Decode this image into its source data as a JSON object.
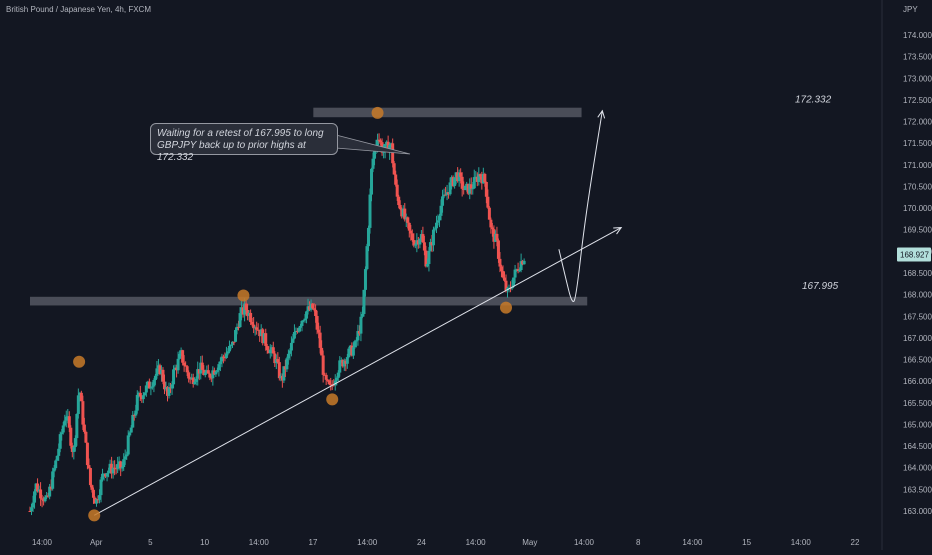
{
  "header": {
    "symbol_title": "British Pound / Japanese Yen, 4h, FXCM"
  },
  "annotation": {
    "text_line1": "Waiting for a retest of 167.995 to long",
    "text_line2": "GBPJPY back up to prior highs at 172.332"
  },
  "colors": {
    "background": "#131722",
    "up": "#26a69a",
    "down": "#ef5350",
    "zone": "#5d606b",
    "marker": "#c87a28",
    "text": "#b2b5be"
  },
  "chart_data": {
    "type": "candlestick",
    "title": "British Pound / Japanese Yen, 4h, FXCM",
    "currency_label": "JPY",
    "y_ticks": [
      "163.000",
      "163.500",
      "164.000",
      "164.500",
      "165.000",
      "165.500",
      "166.000",
      "166.500",
      "167.000",
      "167.500",
      "168.000",
      "168.500",
      "169.000",
      "169.500",
      "170.000",
      "170.500",
      "171.000",
      "171.500",
      "172.000",
      "172.500",
      "173.000",
      "173.500",
      "174.000"
    ],
    "ylim": [
      162.8,
      174.6
    ],
    "last_price": "168.927",
    "x_ticks": [
      "14:00",
      "Apr",
      "5",
      "10",
      "14:00",
      "17",
      "14:00",
      "24",
      "14:00",
      "May",
      "14:00",
      "8",
      "14:00",
      "15",
      "14:00",
      "22"
    ],
    "xlim": [
      0,
      45
    ],
    "support_level": {
      "label": "167.995",
      "from": 0,
      "to": 29.5,
      "high": 167.95,
      "low": 167.75
    },
    "resistance_level": {
      "label": "172.332",
      "from": 15,
      "to": 29.2,
      "high": 172.32,
      "low": 172.1
    },
    "trendline": {
      "start": [
        3.4,
        162.9
      ],
      "end": [
        31.3,
        169.55
      ]
    },
    "projection_path": [
      [
        28.0,
        169.05
      ],
      [
        28.4,
        168.3
      ],
      [
        28.7,
        167.8
      ],
      [
        28.9,
        167.9
      ],
      [
        29.4,
        169.8
      ],
      [
        30.3,
        172.25
      ]
    ],
    "swing_markers": [
      [
        2.6,
        166.45
      ],
      [
        3.4,
        162.9
      ],
      [
        11.3,
        167.98
      ],
      [
        16.0,
        165.58
      ],
      [
        18.4,
        172.2
      ],
      [
        25.2,
        167.7
      ]
    ],
    "price_path": [
      [
        0,
        163.0
      ],
      [
        0.3,
        163.6
      ],
      [
        0.9,
        163.2
      ],
      [
        1.4,
        164.2
      ],
      [
        1.9,
        165.3
      ],
      [
        2.3,
        164.3
      ],
      [
        2.6,
        165.9
      ],
      [
        2.9,
        164.7
      ],
      [
        3.2,
        163.6
      ],
      [
        3.5,
        163.2
      ],
      [
        3.9,
        163.9
      ],
      [
        4.4,
        164.0
      ],
      [
        4.9,
        164.0
      ],
      [
        5.3,
        164.8
      ],
      [
        5.7,
        165.6
      ],
      [
        6.3,
        165.9
      ],
      [
        6.9,
        166.3
      ],
      [
        7.3,
        165.6
      ],
      [
        7.6,
        166.2
      ],
      [
        8.0,
        166.6
      ],
      [
        8.5,
        166.0
      ],
      [
        9.0,
        166.3
      ],
      [
        9.4,
        166.1
      ],
      [
        9.8,
        166.3
      ],
      [
        10.3,
        166.6
      ],
      [
        10.7,
        166.8
      ],
      [
        11.1,
        167.5
      ],
      [
        11.4,
        167.7
      ],
      [
        11.8,
        167.4
      ],
      [
        12.1,
        167.2
      ],
      [
        12.6,
        166.8
      ],
      [
        13.0,
        166.5
      ],
      [
        13.3,
        166.0
      ],
      [
        13.7,
        166.6
      ],
      [
        14.1,
        167.2
      ],
      [
        14.6,
        167.6
      ],
      [
        15.0,
        167.7
      ],
      [
        15.3,
        167.0
      ],
      [
        15.6,
        166.0
      ],
      [
        15.9,
        165.8
      ],
      [
        16.3,
        166.3
      ],
      [
        16.8,
        166.6
      ],
      [
        17.2,
        166.8
      ],
      [
        17.6,
        167.5
      ],
      [
        17.9,
        169.5
      ],
      [
        18.1,
        171.0
      ],
      [
        18.4,
        171.7
      ],
      [
        18.7,
        171.3
      ],
      [
        19.1,
        171.5
      ],
      [
        19.4,
        170.3
      ],
      [
        19.8,
        169.8
      ],
      [
        20.1,
        169.4
      ],
      [
        20.4,
        169.2
      ],
      [
        20.7,
        169.4
      ],
      [
        21.0,
        168.7
      ],
      [
        21.3,
        169.3
      ],
      [
        21.7,
        170.0
      ],
      [
        22.1,
        170.4
      ],
      [
        22.6,
        170.8
      ],
      [
        23.0,
        170.4
      ],
      [
        23.4,
        170.5
      ],
      [
        23.8,
        170.8
      ],
      [
        24.1,
        170.6
      ],
      [
        24.4,
        169.5
      ],
      [
        24.7,
        169.2
      ],
      [
        25.0,
        168.4
      ],
      [
        25.3,
        168.0
      ],
      [
        25.6,
        168.4
      ],
      [
        25.9,
        168.7
      ],
      [
        26.2,
        168.9
      ]
    ]
  }
}
